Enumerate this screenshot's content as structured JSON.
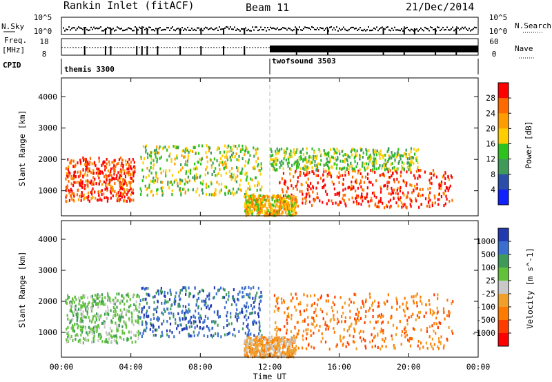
{
  "header": {
    "station": "Rankin Inlet (fitACF)",
    "beam": "Beam 11",
    "date": "21/Dec/2014"
  },
  "params": {
    "nsky_label": "N.Sky",
    "nsearch_label": "N.Search",
    "freq_label": "Freq.",
    "freq_unit": "[MHz]",
    "nave_label": "Nave",
    "cpid_label": "CPID",
    "nsky_ticks": [
      "10^5",
      "10^0"
    ],
    "nsearch_ticks": [
      "10^5",
      "10^0"
    ],
    "freq_ticks": [
      "18",
      "8"
    ],
    "nave_ticks": [
      "60",
      "0"
    ],
    "cpid_modes": [
      {
        "name": "themis 3300",
        "start_hour": 0
      },
      {
        "name": "twofsound 3503",
        "start_hour": 12
      }
    ]
  },
  "chart_data": [
    {
      "type": "heatmap",
      "quantity": "Power",
      "ylabel": "Slant Range [km]",
      "colorbar_label": "Power [dB]",
      "colorbar_ticks": [
        28,
        24,
        20,
        16,
        12,
        8,
        4
      ],
      "colorbar_colors": [
        "#ff0000",
        "#ff6a00",
        "#ff9c00",
        "#ffce00",
        "#2fc21e",
        "#3f9a5a",
        "#2b4ea8",
        "#1020ff"
      ],
      "ylim": [
        200,
        4600
      ],
      "yticks": [
        1000,
        2000,
        3000,
        4000
      ],
      "xlim": [
        0,
        24
      ],
      "scatter_regions": [
        {
          "t0": 0.2,
          "t1": 4.2,
          "r0": 700,
          "r1": 2100,
          "value": 26
        },
        {
          "t0": 4.5,
          "t1": 11.5,
          "r0": 900,
          "r1": 2500,
          "value": 14
        },
        {
          "t0": 12.5,
          "t1": 22.5,
          "r0": 500,
          "r1": 1700,
          "value": 27
        },
        {
          "t0": 12.0,
          "t1": 20.5,
          "r0": 1700,
          "r1": 2400,
          "value": 12
        },
        {
          "t0": 10.5,
          "t1": 13.5,
          "r0": 250,
          "r1": 900,
          "value": 18
        }
      ]
    },
    {
      "type": "heatmap",
      "quantity": "Velocity",
      "ylabel": "Slant Range [km]",
      "xlabel": "Time UT",
      "colorbar_label": "Velocity [m s^-1]",
      "colorbar_ticks": [
        "1000",
        "500",
        "100",
        "25",
        "-25",
        "-100",
        "-500",
        "-1000"
      ],
      "colorbar_colors": [
        "#2339b0",
        "#3a6fd0",
        "#3f9a5a",
        "#61c23a",
        "#c8c8c8",
        "#f0a02a",
        "#ff7a00",
        "#ff3c00",
        "#ff0000"
      ],
      "ylim": [
        200,
        4600
      ],
      "yticks": [
        1000,
        2000,
        3000,
        4000
      ],
      "xlim": [
        0,
        24
      ],
      "xticks": [
        "00:00",
        "04:00",
        "08:00",
        "12:00",
        "16:00",
        "20:00",
        "00:00"
      ],
      "scatter_regions": [
        {
          "t0": 0.2,
          "t1": 4.5,
          "r0": 700,
          "r1": 2300,
          "value": 50
        },
        {
          "t0": 4.5,
          "t1": 11.5,
          "r0": 900,
          "r1": 2500,
          "value": 600
        },
        {
          "t0": 12.2,
          "t1": 22.5,
          "r0": 500,
          "r1": 2300,
          "value": -300
        },
        {
          "t0": 10.5,
          "t1": 13.5,
          "r0": 250,
          "r1": 900,
          "value": -200
        }
      ]
    }
  ]
}
